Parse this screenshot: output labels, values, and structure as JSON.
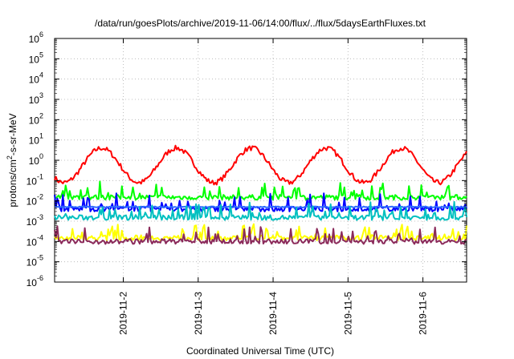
{
  "chart_data": {
    "type": "line",
    "title": "/data/run/goesPlots/archive/2019-11-06/14:00/flux/../flux/5daysEarthFluxes.txt",
    "xlabel": "Coordinated Universal Time (UTC)",
    "ylabel": {
      "base": "protons/cm",
      "sup": "2",
      "rest": "-s-sr-MeV"
    },
    "yscale": "log",
    "ylim": [
      1e-06,
      1000000.0
    ],
    "y_ticks": [
      {
        "exp": "-6"
      },
      {
        "exp": "-5"
      },
      {
        "exp": "-4"
      },
      {
        "exp": "-3"
      },
      {
        "exp": "-2"
      },
      {
        "exp": "-1"
      },
      {
        "exp": "0"
      },
      {
        "exp": "1"
      },
      {
        "exp": "2"
      },
      {
        "exp": "3"
      },
      {
        "exp": "4"
      },
      {
        "exp": "5"
      },
      {
        "exp": "6"
      }
    ],
    "xlim": [
      "2019-11-01T02:00",
      "2019-11-06T14:00"
    ],
    "x_ticks": [
      "2019-11-2",
      "2019-11-3",
      "2019-11-4",
      "2019-11-5",
      "2019-11-6"
    ],
    "grid": true,
    "legend": "none",
    "series": [
      {
        "color": "#ff0000",
        "approx_level": 0.8,
        "variation": "diurnal 0.1–3"
      },
      {
        "color": "#00ff00",
        "approx_level": 0.015,
        "variation": "spiky up to 0.1"
      },
      {
        "color": "#0000ff",
        "approx_level": 0.004,
        "variation": "spiky"
      },
      {
        "color": "#2e6bff",
        "approx_level": 0.005,
        "variation": "flat"
      },
      {
        "color": "#00c0c0",
        "approx_level": 0.0015,
        "variation": "spiky"
      },
      {
        "color": "#ffff00",
        "approx_level": 0.00015,
        "variation": "spiky"
      },
      {
        "color": "#8b2a5a",
        "approx_level": 0.0001,
        "variation": "spiky"
      }
    ]
  }
}
